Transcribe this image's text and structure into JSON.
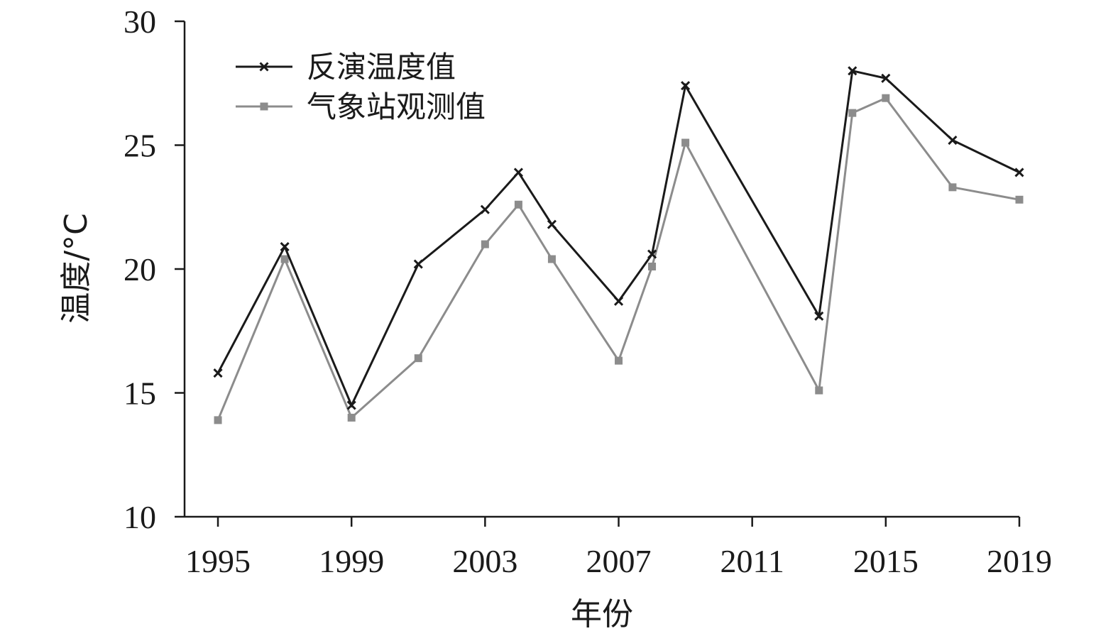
{
  "chart_data": {
    "type": "line",
    "xlabel": "年份",
    "ylabel": "温度/°C",
    "xlim": [
      1994,
      2019
    ],
    "ylim": [
      10,
      30
    ],
    "x_ticks": [
      1995,
      1999,
      2003,
      2007,
      2011,
      2015,
      2019
    ],
    "y_ticks": [
      10,
      15,
      20,
      25,
      30
    ],
    "grid": false,
    "legend_position": "top-left",
    "series": [
      {
        "name": "反演温度值",
        "color": "#1a1a1a",
        "marker": "x",
        "x": [
          1995,
          1997,
          1999,
          2001,
          2003,
          2004,
          2005,
          2007,
          2008,
          2009,
          2013,
          2014,
          2015,
          2017,
          2019
        ],
        "values": [
          15.8,
          20.9,
          14.5,
          20.2,
          22.4,
          23.9,
          21.8,
          18.7,
          20.6,
          27.4,
          18.1,
          28.0,
          27.7,
          25.2,
          23.9
        ]
      },
      {
        "name": "气象站观测值",
        "color": "#8c8c8c",
        "marker": "square",
        "x": [
          1995,
          1997,
          1999,
          2001,
          2003,
          2004,
          2005,
          2007,
          2008,
          2009,
          2013,
          2014,
          2015,
          2017,
          2019
        ],
        "values": [
          13.9,
          20.4,
          14.0,
          16.4,
          21.0,
          22.6,
          20.4,
          16.3,
          20.1,
          25.1,
          15.1,
          26.3,
          26.9,
          23.3,
          22.8
        ]
      }
    ]
  }
}
